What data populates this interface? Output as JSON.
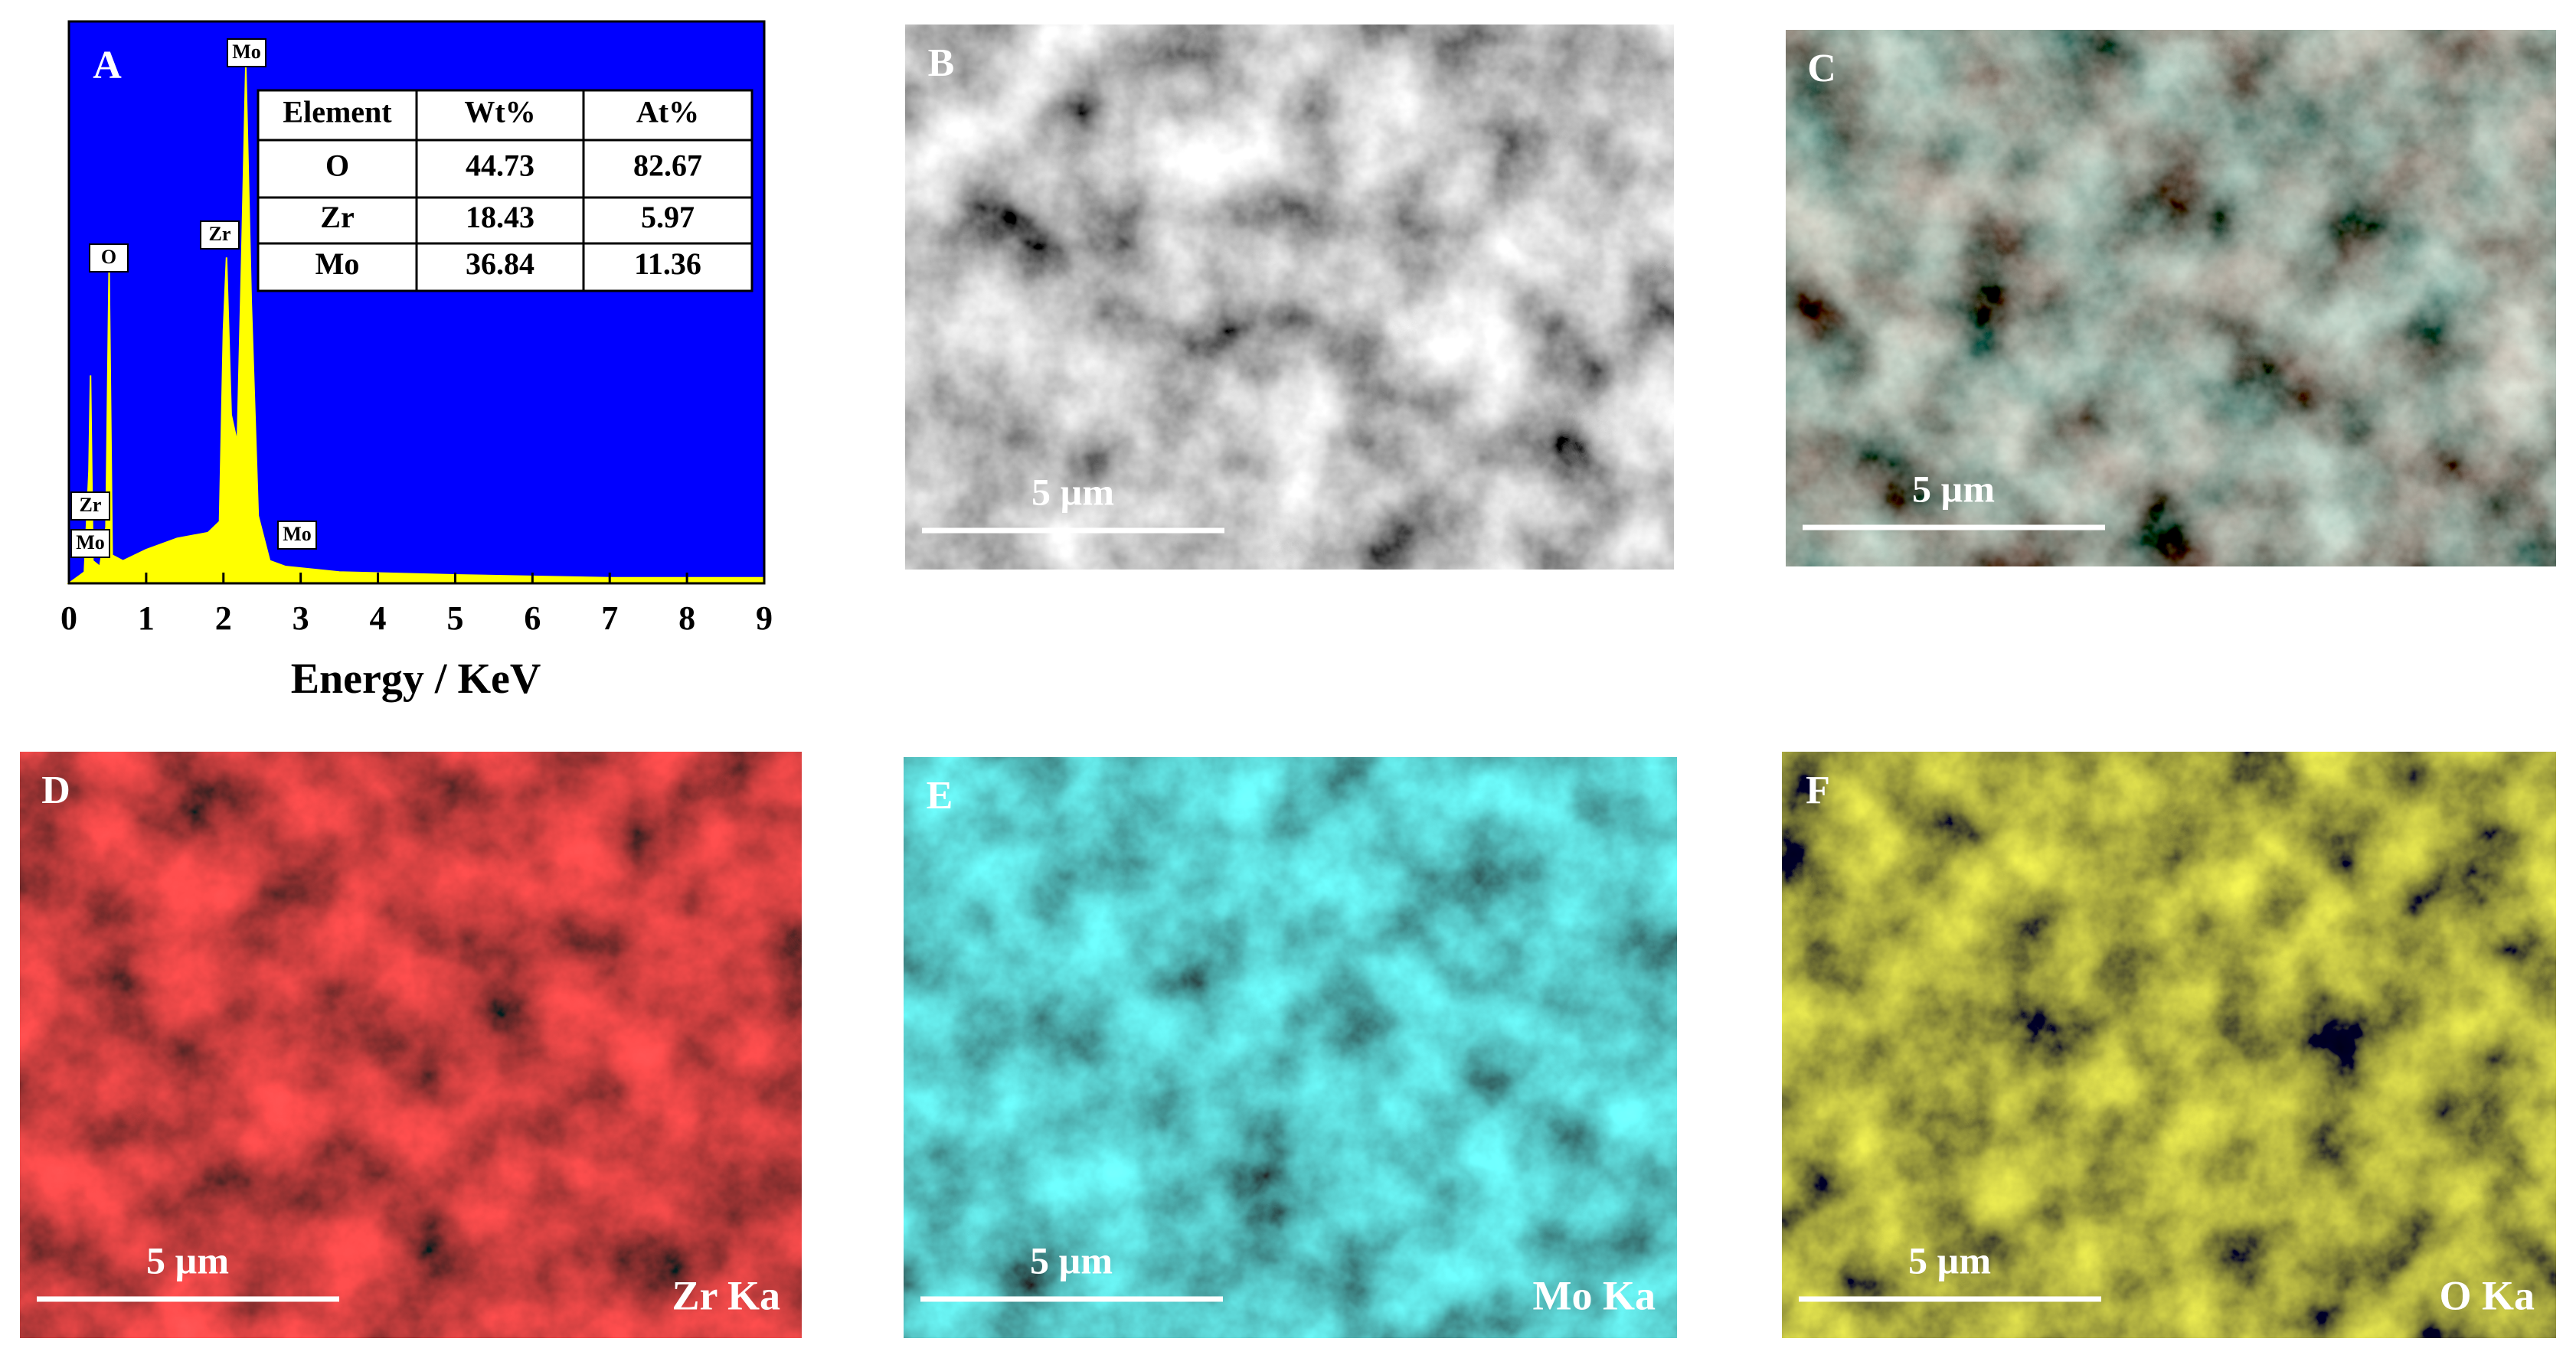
{
  "chart_data": {
    "type": "area",
    "panel_label": "A",
    "x_label": "Energy / KeV",
    "x": [
      0,
      0.2,
      0.26,
      0.28,
      0.31,
      0.4,
      0.48,
      0.52,
      0.56,
      0.7,
      1.0,
      1.4,
      1.8,
      1.95,
      2.0,
      2.04,
      2.1,
      2.18,
      2.24,
      2.29,
      2.36,
      2.45,
      2.6,
      2.8,
      3.5,
      5,
      7,
      9
    ],
    "values": [
      0,
      2,
      20,
      37,
      4,
      3,
      10,
      56,
      5,
      4,
      6,
      8,
      9,
      11,
      45,
      58,
      30,
      25,
      60,
      92,
      50,
      12,
      4,
      3,
      2,
      1.5,
      1,
      1
    ],
    "color": "#ffff00",
    "background": "#0000ff",
    "xlim": [
      0,
      9
    ],
    "ylim": [
      0,
      100
    ],
    "xticks": [
      0,
      1,
      2,
      3,
      4,
      5,
      6,
      7,
      8,
      9
    ],
    "peak_labels": [
      "Mo",
      "O",
      "Zr",
      "Zr",
      "Mo",
      "Mo"
    ],
    "table": {
      "header": [
        "Element",
        "Wt%",
        "At%"
      ],
      "rows": [
        [
          "O",
          44.73,
          82.67
        ],
        [
          "Zr",
          18.43,
          5.97
        ],
        [
          "Mo",
          36.84,
          11.36
        ]
      ]
    }
  },
  "panels": [
    {
      "label": "B",
      "scale_bar": "5 µm"
    },
    {
      "label": "C",
      "scale_bar": "5 µm"
    },
    {
      "label": "D",
      "scale_bar": "5 µm",
      "element": "Zr Ka"
    },
    {
      "label": "E",
      "scale_bar": "5 µm",
      "element": "Mo Ka"
    },
    {
      "label": "F",
      "scale_bar": "5 µm",
      "element": "O Ka"
    }
  ]
}
